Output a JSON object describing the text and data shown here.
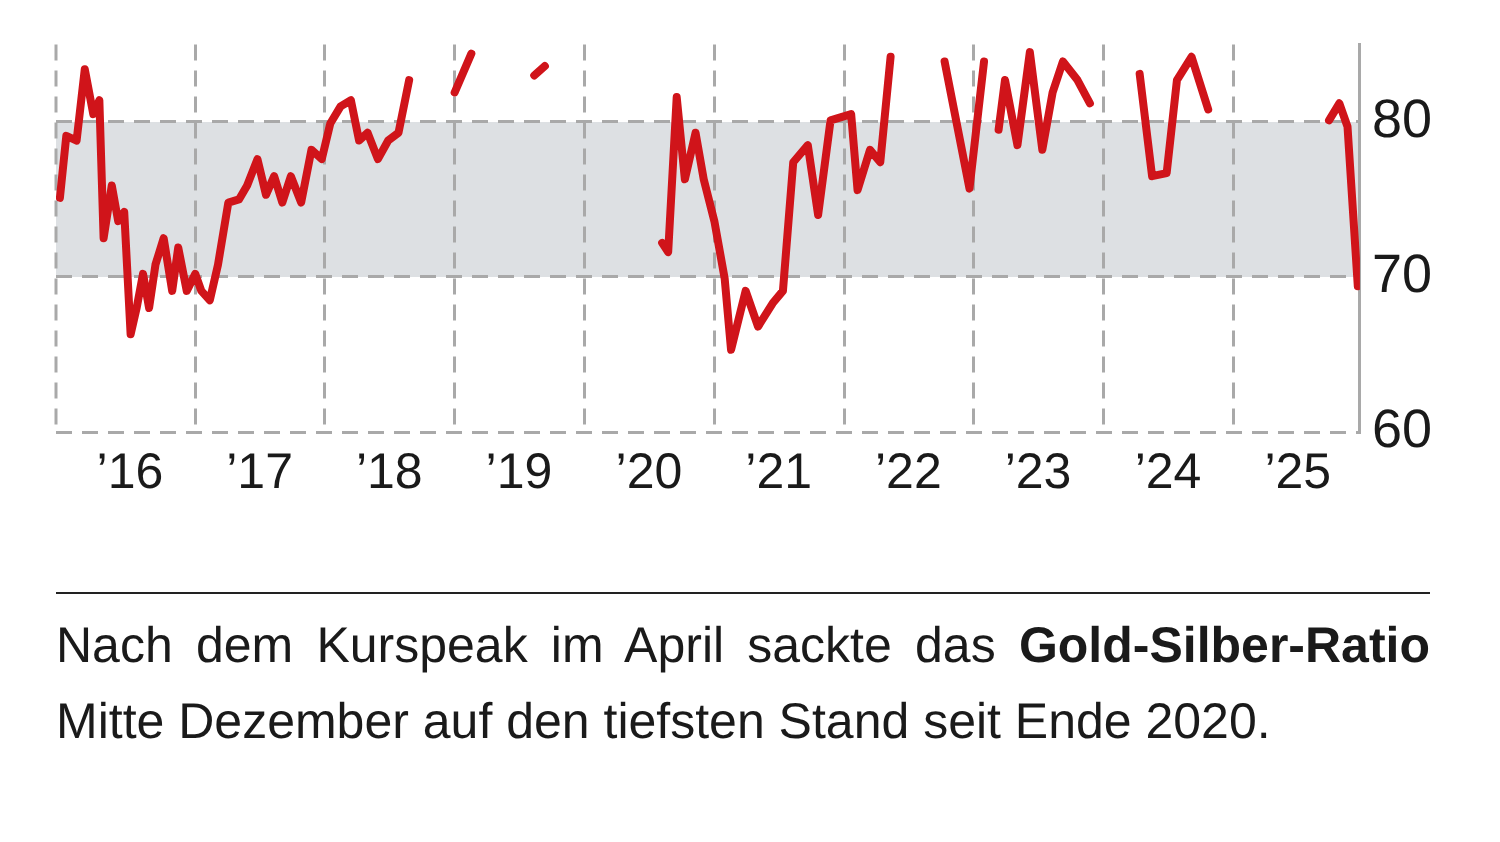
{
  "chart_data": {
    "type": "line",
    "xlim": [
      "2015-12-06",
      "2025-12-23"
    ],
    "ylim": [
      60,
      85
    ],
    "yticks": [
      60,
      70,
      80
    ],
    "xticks": [
      {
        "value": "2016-07-01",
        "label": "’16"
      },
      {
        "value": "2017-01-01",
        "label": null
      },
      {
        "value": "2017-07-01",
        "label": "’17"
      },
      {
        "value": "2018-01-01",
        "label": null
      },
      {
        "value": "2018-07-01",
        "label": "’18"
      },
      {
        "value": "2019-01-01",
        "label": null
      },
      {
        "value": "2019-07-01",
        "label": "’19"
      },
      {
        "value": "2020-01-01",
        "label": null
      },
      {
        "value": "2020-07-01",
        "label": "’20"
      },
      {
        "value": "2021-01-01",
        "label": null
      },
      {
        "value": "2021-07-01",
        "label": "’21"
      },
      {
        "value": "2022-01-01",
        "label": null
      },
      {
        "value": "2022-07-01",
        "label": "’22"
      },
      {
        "value": "2023-01-01",
        "label": null
      },
      {
        "value": "2023-07-01",
        "label": "’23"
      },
      {
        "value": "2024-01-01",
        "label": null
      },
      {
        "value": "2024-07-01",
        "label": "’24"
      },
      {
        "value": "2025-01-01",
        "label": null
      },
      {
        "value": "2025-07-01",
        "label": "’25"
      }
    ],
    "grid": true,
    "legend": false,
    "marker": "none",
    "line_style": "solid",
    "bands": [
      {
        "axis": "y",
        "from": 70,
        "to": 80,
        "color": "#dde0e3"
      }
    ],
    "annotations": [
      "Nach dem Kurspeak im April sackte das",
      "Gold-Silber-Ratio",
      "Mitte Dezember auf den tiefsten Stand seit Ende 2020."
    ],
    "series": [
      {
        "color": "#d0141a",
        "x": [
          "2015-12-17",
          "2016-01-04",
          "2016-02-02",
          "2016-02-25",
          "2016-03-20",
          "2016-04-06",
          "2016-04-18",
          "2016-05-11",
          "2016-05-29",
          "2016-06-15",
          "2016-07-03",
          "2016-07-20",
          "2016-08-07",
          "2016-08-24",
          "2016-09-11",
          "2016-10-04",
          "2016-10-28",
          "2016-11-14",
          "2016-12-08",
          "2017-01-01",
          "2017-01-18",
          "2017-02-11",
          "2017-03-06",
          "2017-04-04",
          "2017-05-04",
          "2017-05-27",
          "2017-06-25",
          "2017-07-19",
          "2017-08-11",
          "2017-09-03",
          "2017-09-27",
          "2017-10-26",
          "2017-11-24",
          "2017-12-23",
          "2018-01-16",
          "2018-02-14",
          "2018-03-15",
          "2018-04-07",
          "2018-05-01",
          "2018-05-30",
          "2018-06-28",
          "2018-07-27",
          "2018-08-26",
          "2018-09-12",
          "2018-10-20",
          "2018-11-21",
          "2019-01-01",
          "2019-02-17",
          "2019-03-16",
          "2019-05-20",
          "2019-07-20",
          "2019-08-13",
          "2019-09-12",
          "2019-10-11",
          "2020-03-01",
          "2020-07-15",
          "2020-08-07",
          "2020-08-24",
          "2020-09-17",
          "2020-10-10",
          "2020-11-09",
          "2020-12-02",
          "2021-01-01",
          "2021-01-30",
          "2021-02-17",
          "2021-03-30",
          "2021-05-04",
          "2021-06-14",
          "2021-07-13",
          "2021-08-11",
          "2021-09-21",
          "2021-10-20",
          "2021-11-24",
          "2022-01-21",
          "2022-02-08",
          "2022-03-15",
          "2022-04-13",
          "2022-05-12",
          "2022-06-11",
          "2022-08-01",
          "2022-09-24",
          "2022-10-11",
          "2022-12-20",
          "2023-01-30",
          "2023-02-17",
          "2023-03-12",
          "2023-03-30",
          "2023-05-04",
          "2023-06-08",
          "2023-07-13",
          "2023-08-11",
          "2023-09-09",
          "2023-10-20",
          "2023-11-24",
          "2023-12-23",
          "2024-02-01",
          "2024-03-14",
          "2024-04-12",
          "2024-05-17",
          "2024-06-27",
          "2024-07-26",
          "2024-09-05",
          "2024-10-22",
          "2024-11-20",
          "2025-04-01",
          "2025-08-23",
          "2025-09-27",
          "2025-10-26",
          "2025-11-18",
          "2025-12-17"
        ],
        "values": [
          75.1,
          79.1,
          78.8,
          83.4,
          80.5,
          81.4,
          72.5,
          75.9,
          73.6,
          74.2,
          66.3,
          68,
          70.2,
          68,
          70.8,
          72.5,
          69.1,
          71.9,
          69.1,
          70.2,
          69.1,
          68.5,
          70.8,
          74.8,
          75,
          75.9,
          77.6,
          75.3,
          76.5,
          74.8,
          76.5,
          74.8,
          78.2,
          77.6,
          79.9,
          81,
          81.4,
          78.8,
          79.3,
          77.6,
          78.8,
          79.3,
          82.7,
          null,
          null,
          null,
          81.9,
          84.4,
          null,
          null,
          null,
          83,
          83.6,
          null,
          null,
          null,
          72.2,
          71.6,
          81.6,
          76.3,
          79.3,
          76.3,
          73.6,
          69.9,
          65.3,
          69.1,
          66.8,
          68.3,
          69.1,
          77.4,
          78.5,
          74,
          80.1,
          80.5,
          75.6,
          78.2,
          77.4,
          84.2,
          null,
          null,
          null,
          83.9,
          75.7,
          83.9,
          null,
          79.5,
          82.7,
          78.5,
          84.5,
          78.2,
          81.9,
          83.9,
          82.7,
          81.2,
          null,
          null,
          null,
          83.1,
          76.5,
          76.7,
          82.7,
          84.2,
          80.8,
          null,
          null,
          null,
          80.1,
          81.2,
          79.7,
          69.4
        ]
      }
    ]
  }
}
